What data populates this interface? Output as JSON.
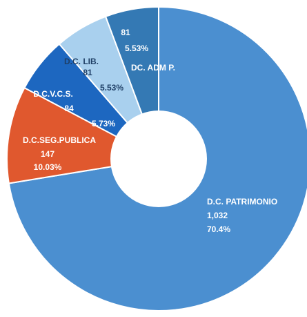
{
  "chart_data": {
    "type": "pie",
    "donut": true,
    "title": "",
    "slices": [
      {
        "name": "D.C. PATRIMONIO",
        "value": 1032,
        "value_label": "1,032",
        "percent_label": "70.4%",
        "color": "#4b8fd0"
      },
      {
        "name": "D.C.SEG.PUBLICA",
        "value": 147,
        "value_label": "147",
        "percent_label": "10.03%",
        "color": "#e0582e"
      },
      {
        "name": "D.C.V.C.S.",
        "value": 84,
        "value_label": "84",
        "percent_label": "5.73%",
        "color": "#1d67c0"
      },
      {
        "name": "D.C. LIB.",
        "value": 81,
        "value_label": "81",
        "percent_label": "5.53%",
        "color": "#a9d0ee"
      },
      {
        "name": "DC. ADM P.",
        "value": 81,
        "value_label": "81",
        "percent_label": "5.53%",
        "color": "#3479b4"
      }
    ]
  }
}
